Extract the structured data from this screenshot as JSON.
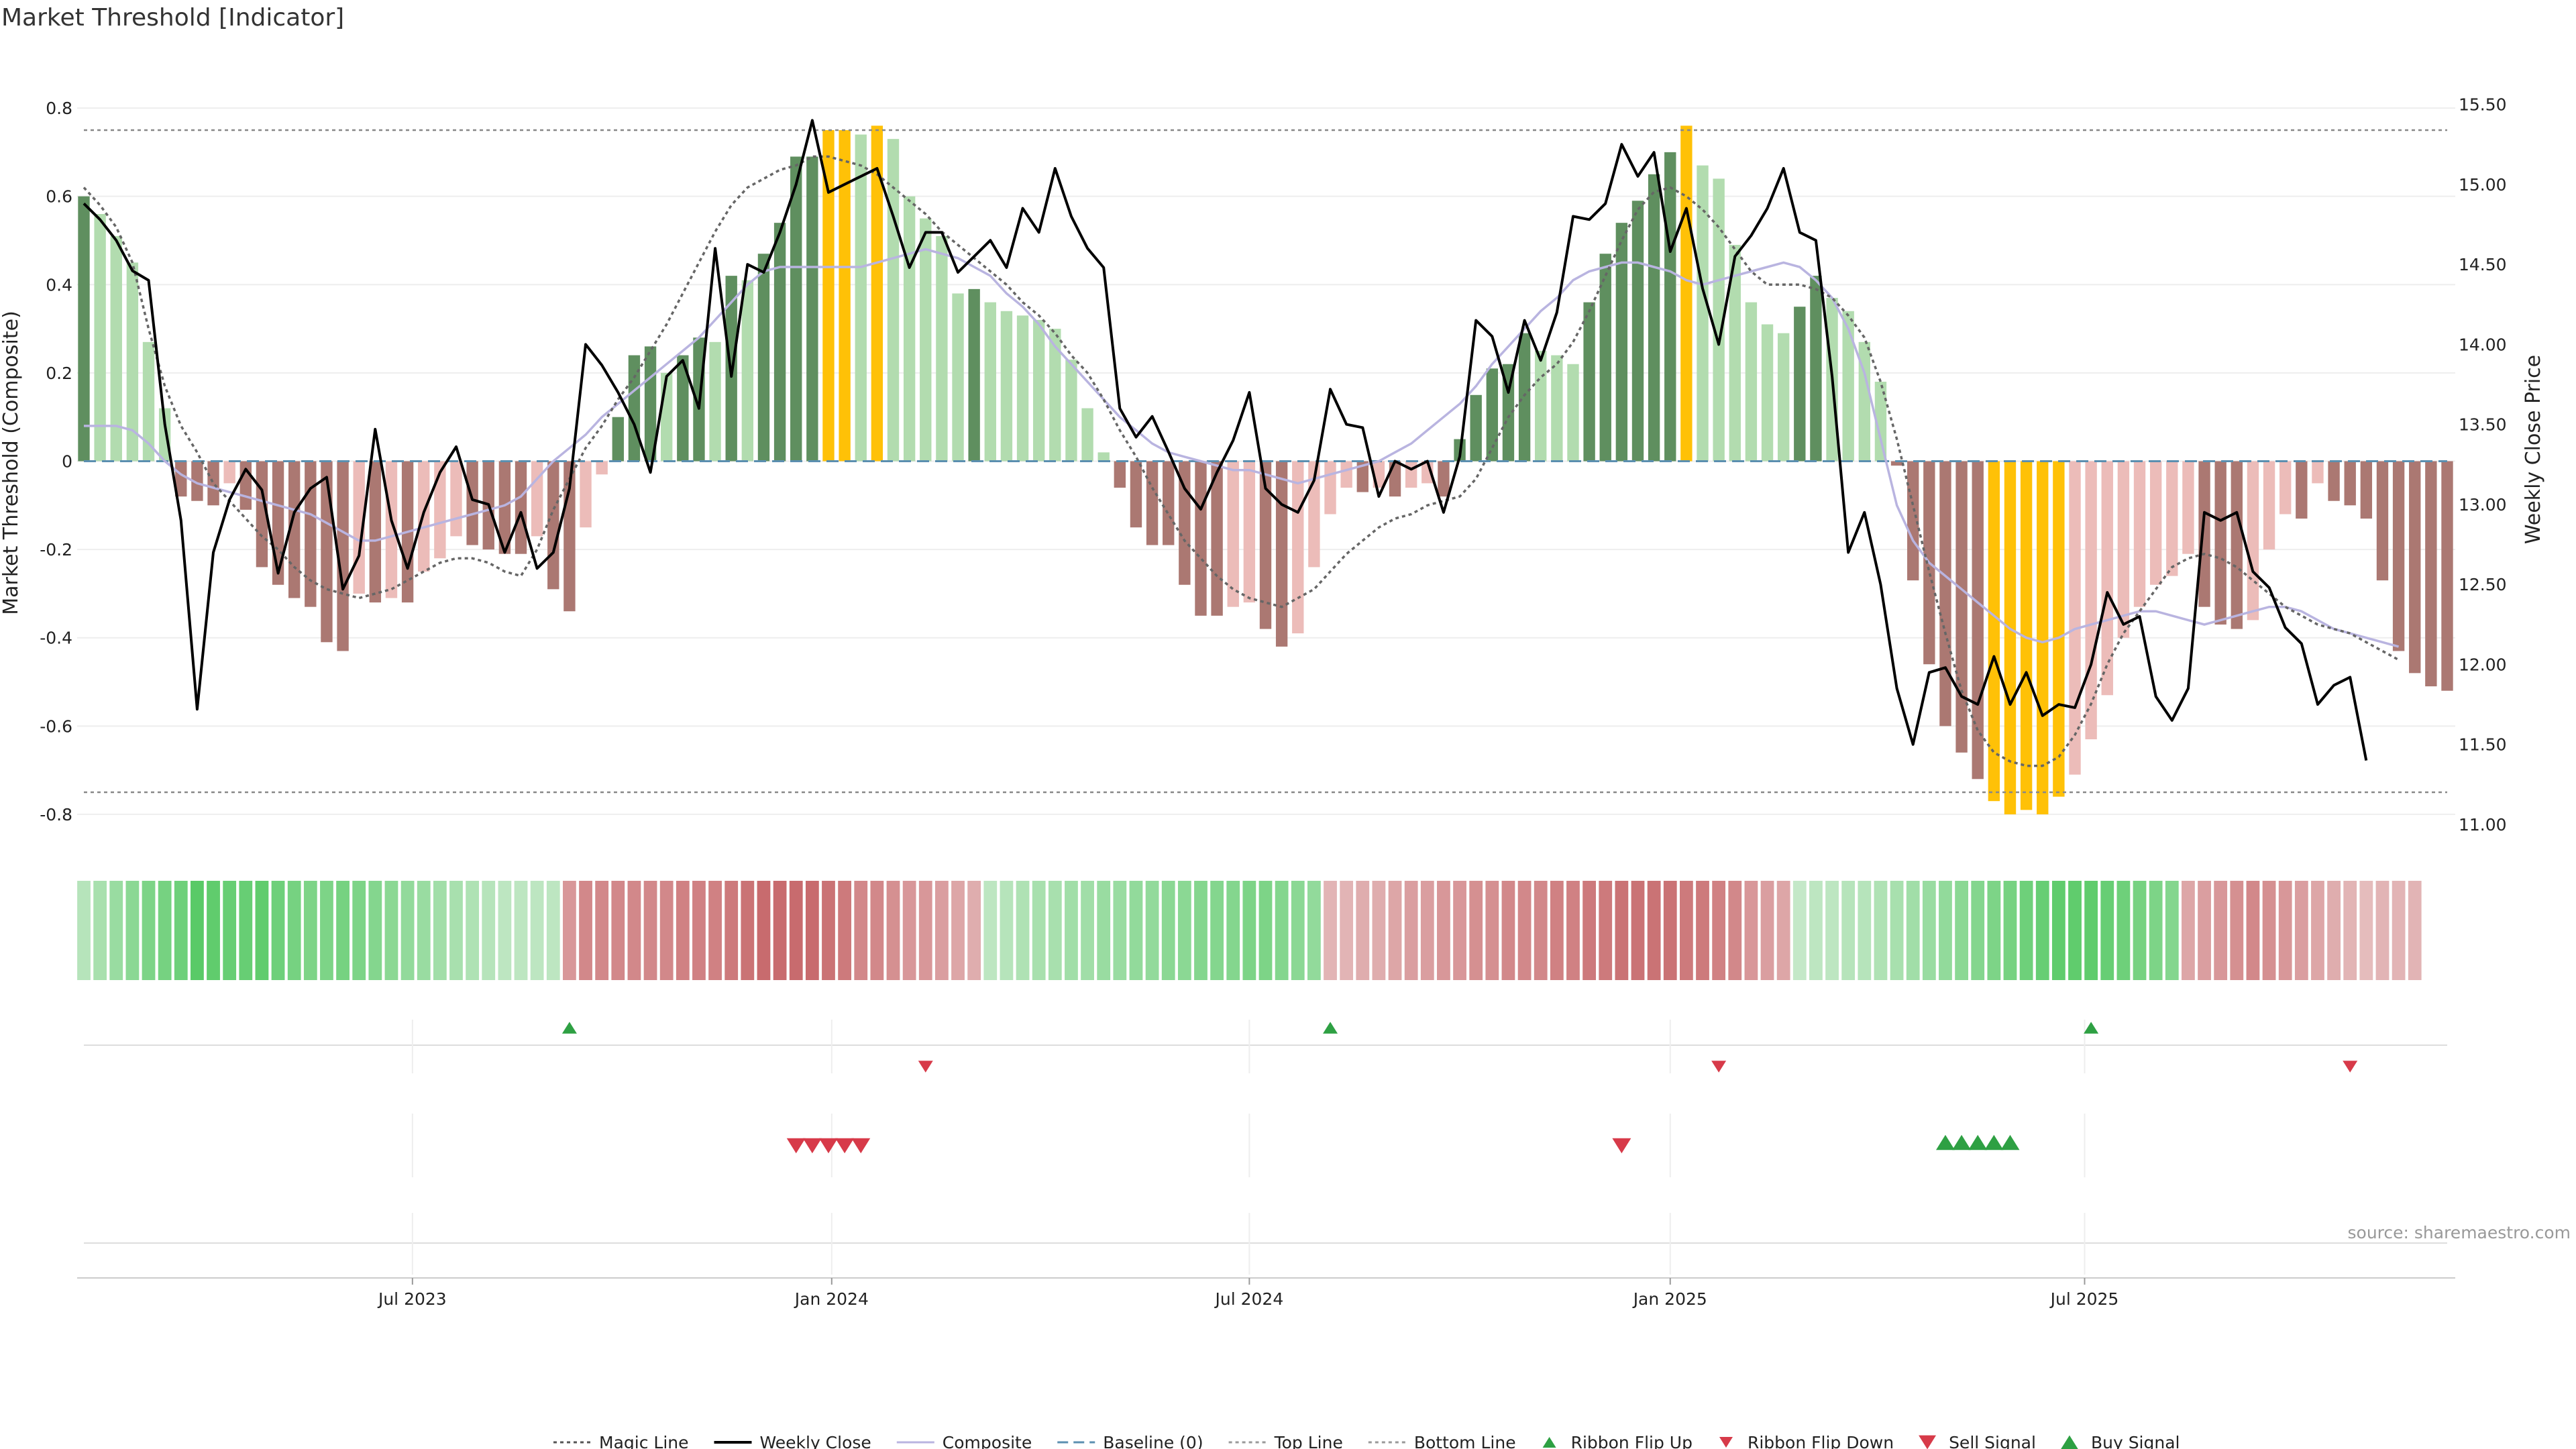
{
  "page": {
    "title": "Market Threshold [Indicator]",
    "source": "source: sharemaestro.com"
  },
  "colors": {
    "bull_strong": "#5f8f5f",
    "bull_light": "#b2dcaf",
    "bear_strong": "#ab7872",
    "bear_light": "#ecbcb9",
    "extreme": "#ffc107",
    "close_line": "#000000",
    "composite_line": "#b9b4e0",
    "magic_line": "#666666",
    "baseline": "#5b8fb0",
    "buy": "#2ea043",
    "sell": "#d73a49"
  },
  "chart_data": {
    "type": "bar",
    "title": "Market Threshold [Indicator]",
    "ylabel": "Market Threshold (Composite)",
    "y2label": "Weekly Close Price",
    "ylim": [
      -0.87,
      0.87
    ],
    "y2lim": [
      10.87,
      15.67
    ],
    "yticks": [
      "0.8",
      "0.6",
      "0.4",
      "0.2",
      "0",
      "-0.2",
      "-0.4",
      "-0.6",
      "-0.8"
    ],
    "y2ticks": [
      "15.50",
      "15.00",
      "14.50",
      "14.00",
      "13.50",
      "13.00",
      "12.50",
      "12.00",
      "11.50",
      "11.00"
    ],
    "xticks": [
      "Jul 2023",
      "Jan 2024",
      "Jul 2024",
      "Jan 2025",
      "Jul 2025"
    ],
    "xtick_weeks": [
      20.3,
      46.2,
      72.0,
      98.0,
      123.6
    ],
    "top_line": 0.75,
    "bottom_line": -0.75,
    "composite": [
      0.6,
      0.56,
      0.51,
      0.45,
      0.27,
      0.12,
      -0.08,
      -0.09,
      -0.1,
      -0.05,
      -0.11,
      -0.24,
      -0.28,
      -0.31,
      -0.33,
      -0.41,
      -0.43,
      -0.3,
      -0.32,
      -0.31,
      -0.32,
      -0.25,
      -0.22,
      -0.17,
      -0.19,
      -0.2,
      -0.21,
      -0.21,
      -0.17,
      -0.29,
      -0.34,
      -0.15,
      -0.03,
      0.1,
      0.24,
      0.26,
      0.2,
      0.24,
      0.28,
      0.27,
      0.42,
      0.41,
      0.47,
      0.54,
      0.69,
      0.69,
      0.75,
      0.75,
      0.74,
      0.76,
      0.73,
      0.6,
      0.55,
      0.51,
      0.38,
      0.39,
      0.36,
      0.34,
      0.33,
      0.32,
      0.3,
      0.23,
      0.12,
      0.02,
      -0.06,
      -0.15,
      -0.19,
      -0.19,
      -0.28,
      -0.35,
      -0.35,
      -0.33,
      -0.32,
      -0.38,
      -0.42,
      -0.39,
      -0.24,
      -0.12,
      -0.06,
      -0.07,
      -0.06,
      -0.08,
      -0.06,
      -0.05,
      -0.08,
      0.05,
      0.15,
      0.21,
      0.22,
      0.29,
      0.25,
      0.24,
      0.22,
      0.36,
      0.47,
      0.54,
      0.59,
      0.65,
      0.7,
      0.76,
      0.67,
      0.64,
      0.49,
      0.36,
      0.31,
      0.29,
      0.35,
      0.42,
      0.37,
      0.34,
      0.27,
      0.18,
      -0.01,
      -0.27,
      -0.46,
      -0.6,
      -0.66,
      -0.72,
      -0.77,
      -0.8,
      -0.79,
      -0.8,
      -0.76,
      -0.71,
      -0.63,
      -0.53,
      -0.4,
      -0.33,
      -0.28,
      -0.26,
      -0.21,
      -0.33,
      -0.37,
      -0.38,
      -0.36,
      -0.2,
      -0.12,
      -0.13,
      -0.05,
      -0.09,
      -0.1,
      -0.13,
      -0.27,
      -0.43,
      -0.48,
      -0.51,
      -0.52
    ],
    "weekly_close": [
      14.88,
      14.78,
      14.65,
      14.46,
      14.4,
      13.5,
      12.9,
      11.72,
      12.7,
      13.03,
      13.22,
      13.09,
      12.57,
      12.95,
      13.1,
      13.17,
      12.47,
      12.68,
      13.47,
      12.9,
      12.6,
      12.95,
      13.2,
      13.36,
      13.03,
      13.0,
      12.7,
      12.95,
      12.6,
      12.7,
      13.1,
      14.0,
      13.87,
      13.7,
      13.5,
      13.2,
      13.8,
      13.9,
      13.6,
      14.6,
      13.8,
      14.5,
      14.45,
      14.7,
      15.0,
      15.4,
      14.95,
      15.0,
      15.05,
      15.1,
      14.8,
      14.48,
      14.7,
      14.7,
      14.45,
      14.55,
      14.65,
      14.48,
      14.85,
      14.7,
      15.1,
      14.8,
      14.6,
      14.48,
      13.6,
      13.42,
      13.55,
      13.33,
      13.1,
      12.97,
      13.2,
      13.4,
      13.7,
      13.1,
      13.0,
      12.95,
      13.15,
      13.72,
      13.5,
      13.48,
      13.05,
      13.27,
      13.22,
      13.27,
      12.95,
      13.3,
      14.15,
      14.05,
      13.7,
      14.15,
      13.9,
      14.2,
      14.8,
      14.78,
      14.88,
      15.25,
      15.05,
      15.2,
      14.58,
      14.85,
      14.35,
      14.0,
      14.55,
      14.68,
      14.85,
      15.1,
      14.7,
      14.65,
      13.8,
      12.7,
      12.95,
      12.5,
      11.85,
      11.5,
      11.95,
      11.98,
      11.8,
      11.75,
      12.05,
      11.75,
      11.95,
      11.68,
      11.75,
      11.73,
      12.0,
      12.45,
      12.25,
      12.3,
      11.8,
      11.65,
      11.85,
      12.95,
      12.9,
      12.95,
      12.58,
      12.48,
      12.23,
      12.13,
      11.75,
      11.87,
      11.92,
      11.4
    ],
    "composite_smooth": [
      0.08,
      0.08,
      0.08,
      0.07,
      0.04,
      0.0,
      -0.03,
      -0.05,
      -0.06,
      -0.07,
      -0.08,
      -0.09,
      -0.1,
      -0.11,
      -0.12,
      -0.14,
      -0.16,
      -0.18,
      -0.18,
      -0.17,
      -0.16,
      -0.15,
      -0.14,
      -0.13,
      -0.12,
      -0.11,
      -0.1,
      -0.08,
      -0.04,
      0.0,
      0.03,
      0.06,
      0.1,
      0.13,
      0.16,
      0.19,
      0.22,
      0.25,
      0.28,
      0.32,
      0.36,
      0.4,
      0.43,
      0.44,
      0.44,
      0.44,
      0.44,
      0.44,
      0.44,
      0.45,
      0.46,
      0.47,
      0.48,
      0.47,
      0.46,
      0.44,
      0.42,
      0.38,
      0.35,
      0.31,
      0.26,
      0.22,
      0.18,
      0.14,
      0.1,
      0.07,
      0.04,
      0.02,
      0.01,
      0.0,
      -0.01,
      -0.02,
      -0.02,
      -0.03,
      -0.04,
      -0.05,
      -0.04,
      -0.03,
      -0.02,
      -0.01,
      0.0,
      0.02,
      0.04,
      0.07,
      0.1,
      0.13,
      0.17,
      0.22,
      0.26,
      0.3,
      0.34,
      0.37,
      0.41,
      0.43,
      0.44,
      0.45,
      0.45,
      0.44,
      0.43,
      0.41,
      0.4,
      0.41,
      0.42,
      0.43,
      0.44,
      0.45,
      0.44,
      0.41,
      0.37,
      0.3,
      0.2,
      0.05,
      -0.1,
      -0.18,
      -0.23,
      -0.26,
      -0.29,
      -0.32,
      -0.35,
      -0.38,
      -0.4,
      -0.41,
      -0.4,
      -0.38,
      -0.37,
      -0.36,
      -0.35,
      -0.34,
      -0.34,
      -0.35,
      -0.36,
      -0.37,
      -0.36,
      -0.35,
      -0.34,
      -0.33,
      -0.33,
      -0.34,
      -0.36,
      -0.38,
      -0.39,
      -0.4,
      -0.41,
      -0.42
    ],
    "magic_line": [
      0.62,
      0.58,
      0.53,
      0.45,
      0.3,
      0.17,
      0.08,
      0.02,
      -0.05,
      -0.09,
      -0.13,
      -0.17,
      -0.2,
      -0.24,
      -0.27,
      -0.29,
      -0.3,
      -0.31,
      -0.3,
      -0.29,
      -0.27,
      -0.25,
      -0.23,
      -0.22,
      -0.22,
      -0.23,
      -0.25,
      -0.26,
      -0.2,
      -0.11,
      -0.04,
      0.03,
      0.08,
      0.14,
      0.19,
      0.25,
      0.31,
      0.38,
      0.45,
      0.52,
      0.58,
      0.62,
      0.64,
      0.66,
      0.67,
      0.69,
      0.69,
      0.68,
      0.67,
      0.65,
      0.62,
      0.59,
      0.56,
      0.52,
      0.49,
      0.46,
      0.43,
      0.4,
      0.36,
      0.33,
      0.29,
      0.24,
      0.2,
      0.14,
      0.07,
      0.01,
      -0.06,
      -0.12,
      -0.18,
      -0.22,
      -0.26,
      -0.29,
      -0.31,
      -0.32,
      -0.33,
      -0.31,
      -0.29,
      -0.25,
      -0.21,
      -0.18,
      -0.15,
      -0.13,
      -0.12,
      -0.1,
      -0.09,
      -0.08,
      -0.04,
      0.03,
      0.1,
      0.15,
      0.19,
      0.22,
      0.27,
      0.34,
      0.42,
      0.5,
      0.57,
      0.61,
      0.62,
      0.6,
      0.57,
      0.53,
      0.48,
      0.43,
      0.4,
      0.4,
      0.4,
      0.39,
      0.37,
      0.33,
      0.28,
      0.18,
      0.05,
      -0.1,
      -0.25,
      -0.39,
      -0.52,
      -0.61,
      -0.66,
      -0.68,
      -0.69,
      -0.69,
      -0.67,
      -0.62,
      -0.55,
      -0.46,
      -0.39,
      -0.34,
      -0.29,
      -0.24,
      -0.22,
      -0.21,
      -0.22,
      -0.24,
      -0.27,
      -0.3,
      -0.33,
      -0.35,
      -0.37,
      -0.38,
      -0.39,
      -0.41,
      -0.43,
      -0.45
    ],
    "ribbon_intensity": [
      0.35,
      0.45,
      0.55,
      0.65,
      0.75,
      0.8,
      0.85,
      1.0,
      0.95,
      0.9,
      0.9,
      0.95,
      0.85,
      0.8,
      0.75,
      0.75,
      0.8,
      0.75,
      0.7,
      0.65,
      0.6,
      0.55,
      0.5,
      0.45,
      0.4,
      0.35,
      0.3,
      0.3,
      0.3,
      0.3,
      -0.5,
      -0.6,
      -0.6,
      -0.6,
      -0.6,
      -0.6,
      -0.6,
      -0.65,
      -0.65,
      -0.65,
      -0.7,
      -0.75,
      -0.8,
      -0.8,
      -0.8,
      -0.8,
      -0.75,
      -0.7,
      -0.6,
      -0.6,
      -0.55,
      -0.5,
      -0.5,
      -0.45,
      -0.4,
      -0.35,
      0.3,
      0.35,
      0.4,
      0.45,
      0.45,
      0.5,
      0.5,
      0.55,
      0.55,
      0.6,
      0.6,
      0.65,
      0.65,
      0.7,
      0.7,
      0.7,
      0.75,
      0.75,
      0.7,
      0.65,
      0.6,
      -0.3,
      -0.3,
      -0.35,
      -0.35,
      -0.4,
      -0.45,
      -0.45,
      -0.5,
      -0.5,
      -0.55,
      -0.55,
      -0.6,
      -0.6,
      -0.6,
      -0.65,
      -0.65,
      -0.7,
      -0.7,
      -0.75,
      -0.75,
      -0.75,
      -0.75,
      -0.7,
      -0.7,
      -0.65,
      -0.6,
      -0.5,
      -0.45,
      -0.4,
      0.25,
      0.3,
      0.3,
      0.35,
      0.35,
      0.4,
      0.45,
      0.5,
      0.55,
      0.6,
      0.65,
      0.7,
      0.75,
      0.8,
      0.85,
      0.9,
      0.95,
      0.95,
      0.95,
      0.9,
      0.85,
      0.8,
      0.75,
      0.7,
      -0.4,
      -0.45,
      -0.5,
      -0.55,
      -0.6,
      -0.55,
      -0.5,
      -0.45,
      -0.4,
      -0.35,
      -0.3,
      -0.25,
      -0.3,
      -0.3,
      -0.3
    ],
    "ribbon_flip_up_weeks": [
      30,
      77,
      124
    ],
    "ribbon_flip_down_weeks": [
      52,
      101,
      140
    ],
    "sell_signal_weeks": [
      44,
      45,
      46,
      47,
      48,
      95
    ],
    "buy_signal_weeks": [
      115,
      116,
      117,
      118,
      119
    ],
    "legend": [
      {
        "label": "Magic Line",
        "kind": "dotted-line"
      },
      {
        "label": "Weekly Close",
        "kind": "solid-line"
      },
      {
        "label": "Composite",
        "kind": "thin-line"
      },
      {
        "label": "Baseline (0)",
        "kind": "dashed-line"
      },
      {
        "label": "Top Line",
        "kind": "dotted-line"
      },
      {
        "label": "Bottom Line",
        "kind": "dotted-line"
      },
      {
        "label": "Ribbon Flip Up",
        "kind": "triangle-up-small"
      },
      {
        "label": "Ribbon Flip Down",
        "kind": "triangle-down-small"
      },
      {
        "label": "Sell Signal",
        "kind": "triangle-down"
      },
      {
        "label": "Buy Signal",
        "kind": "triangle-up"
      }
    ]
  }
}
